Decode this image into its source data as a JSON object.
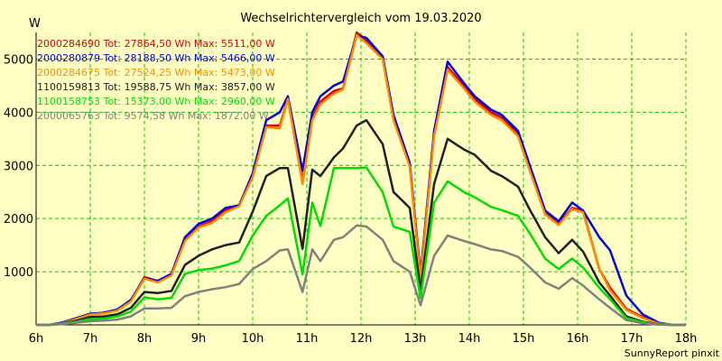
{
  "chart_data": {
    "type": "line",
    "title": "Wechselrichtervergleich vom 19.03.2020",
    "ylabel": "W",
    "xlabel": "",
    "credit": "SunnyReport pinxit",
    "xlim": [
      6,
      18
    ],
    "ylim": [
      0,
      5500
    ],
    "grid": true,
    "x_ticks": [
      6,
      7,
      8,
      9,
      10,
      11,
      12,
      13,
      14,
      15,
      16,
      17,
      18
    ],
    "x_tick_labels": [
      "6h",
      "7h",
      "8h",
      "9h",
      "10h",
      "11h",
      "12h",
      "13h",
      "14h",
      "15h",
      "16h",
      "17h",
      "18h"
    ],
    "y_ticks": [
      1000,
      2000,
      3000,
      4000,
      5000
    ],
    "y_tick_labels": [
      "1000",
      "2000",
      "3000",
      "4000",
      "5000"
    ],
    "x": [
      6.0,
      6.25,
      6.5,
      6.75,
      7.0,
      7.25,
      7.5,
      7.75,
      8.0,
      8.25,
      8.5,
      8.75,
      9.0,
      9.25,
      9.5,
      9.75,
      10.0,
      10.25,
      10.5,
      10.65,
      10.92,
      11.1,
      11.25,
      11.5,
      11.67,
      11.92,
      12.1,
      12.4,
      12.6,
      12.9,
      13.1,
      13.35,
      13.6,
      13.9,
      14.1,
      14.4,
      14.6,
      14.9,
      15.1,
      15.4,
      15.65,
      15.9,
      16.1,
      16.4,
      16.6,
      16.9,
      17.2,
      17.5,
      17.75,
      18.0
    ],
    "series": [
      {
        "name": "2000284690",
        "legend": "2000284690 Tot: 27864,50 Wh Max: 5511,00 W",
        "color": "#e00000",
        "values": [
          0,
          0,
          40,
          120,
          200,
          220,
          280,
          450,
          900,
          820,
          950,
          1600,
          1850,
          1950,
          2150,
          2250,
          2800,
          3750,
          3750,
          4250,
          2700,
          3900,
          4200,
          4400,
          4450,
          5500,
          5350,
          5050,
          3900,
          3000,
          900,
          3600,
          4850,
          4500,
          4250,
          4000,
          3900,
          3600,
          3000,
          2100,
          1900,
          2200,
          2150,
          1050,
          700,
          300,
          150,
          30,
          0,
          0
        ]
      },
      {
        "name": "2000280879",
        "legend": "2000280879 Tot: 28188,50 Wh Max: 5466,00 W",
        "color": "#0000e0",
        "values": [
          0,
          0,
          50,
          130,
          210,
          230,
          290,
          470,
          880,
          830,
          960,
          1650,
          1900,
          2000,
          2200,
          2250,
          2850,
          3850,
          4000,
          4300,
          2900,
          4000,
          4300,
          4500,
          4580,
          5450,
          5400,
          5050,
          3950,
          3050,
          950,
          3650,
          4950,
          4550,
          4300,
          4050,
          3950,
          3650,
          3050,
          2150,
          1950,
          2300,
          2150,
          1650,
          1400,
          550,
          200,
          40,
          0,
          0
        ]
      },
      {
        "name": "2000284675",
        "legend": "2000284675 Tot: 27524,25 Wh Max: 5473,00 W",
        "color": "#ff8800",
        "values": [
          0,
          0,
          35,
          115,
          195,
          215,
          270,
          440,
          870,
          800,
          930,
          1580,
          1830,
          1920,
          2120,
          2230,
          2780,
          3720,
          3700,
          4250,
          2650,
          3850,
          4150,
          4350,
          4430,
          5450,
          5300,
          5000,
          3850,
          2980,
          880,
          3550,
          4800,
          4450,
          4200,
          3950,
          3850,
          3550,
          2950,
          2080,
          1880,
          2180,
          2120,
          1050,
          650,
          280,
          130,
          25,
          0,
          0
        ]
      },
      {
        "name": "1100159813",
        "legend": "1100159813 Tot: 19588,75 Wh Max: 3857,00 W",
        "color": "#202020",
        "values": [
          0,
          0,
          30,
          80,
          150,
          160,
          200,
          320,
          620,
          600,
          640,
          1130,
          1300,
          1420,
          1500,
          1550,
          2130,
          2800,
          2950,
          2950,
          1430,
          2920,
          2800,
          3150,
          3320,
          3750,
          3850,
          3400,
          2500,
          2200,
          650,
          2650,
          3500,
          3300,
          3200,
          2900,
          2800,
          2600,
          2200,
          1650,
          1350,
          1600,
          1380,
          800,
          550,
          160,
          60,
          10,
          0,
          0
        ]
      },
      {
        "name": "1100158753",
        "legend": "1100158753 Tot: 15373,00 Wh Max: 2960,00 W",
        "color": "#00dd00",
        "values": [
          0,
          0,
          25,
          60,
          110,
          120,
          160,
          250,
          520,
          480,
          510,
          960,
          1030,
          1060,
          1120,
          1200,
          1680,
          2050,
          2250,
          2380,
          950,
          2300,
          1860,
          2950,
          2950,
          2950,
          2960,
          2500,
          1850,
          1750,
          500,
          2300,
          2700,
          2500,
          2400,
          2220,
          2160,
          2050,
          1750,
          1250,
          1050,
          1250,
          1080,
          700,
          480,
          130,
          50,
          8,
          0,
          0
        ]
      },
      {
        "name": "2000065763",
        "legend": "2000065763 Tot: 9574,58 Wh Max: 1872,00 W",
        "color": "#808080",
        "values": [
          0,
          0,
          15,
          40,
          70,
          80,
          100,
          160,
          310,
          310,
          320,
          540,
          620,
          670,
          710,
          770,
          1050,
          1200,
          1400,
          1420,
          620,
          1420,
          1200,
          1600,
          1650,
          1870,
          1850,
          1600,
          1200,
          1000,
          370,
          1300,
          1680,
          1580,
          1520,
          1420,
          1390,
          1280,
          1100,
          800,
          680,
          880,
          740,
          480,
          320,
          90,
          30,
          5,
          0,
          0
        ]
      }
    ]
  }
}
